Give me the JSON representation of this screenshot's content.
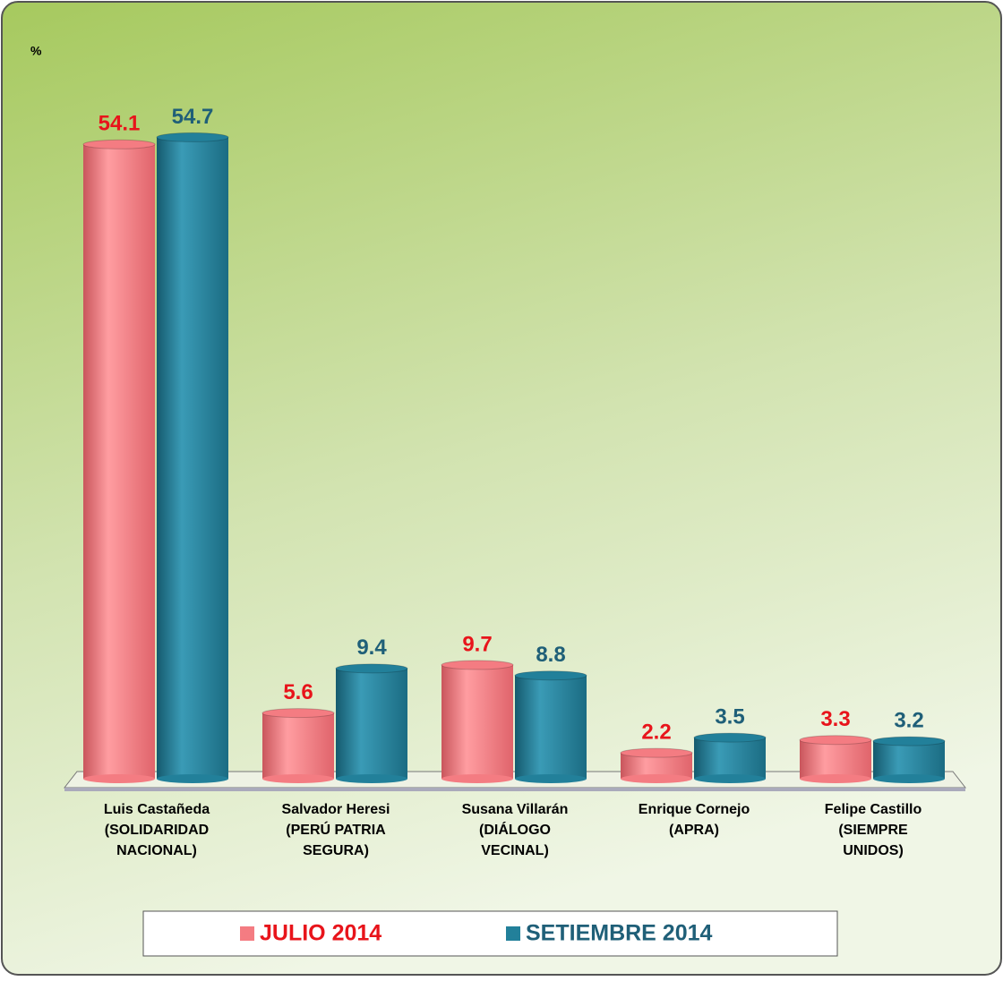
{
  "chart_data": {
    "type": "bar",
    "y_label": "%",
    "categories": [
      [
        "Luis Castañeda",
        "(SOLIDARIDAD",
        "NACIONAL)"
      ],
      [
        "Salvador Heresi",
        "(PERÚ PATRIA",
        "SEGURA)"
      ],
      [
        "Susana Villarán",
        "(DIÁLOGO",
        "VECINAL)"
      ],
      [
        "Enrique Cornejo",
        "(APRA)"
      ],
      [
        "Felipe Castillo",
        "(SIEMPRE",
        "UNIDOS)"
      ]
    ],
    "series": [
      {
        "name": "JULIO 2014",
        "color": "#f47c82",
        "label_color": "#e8141b",
        "values": [
          54.1,
          5.6,
          9.7,
          2.2,
          3.3
        ]
      },
      {
        "name": "SETIEMBRE 2014",
        "color": "#22809a",
        "label_color": "#1f5f78",
        "values": [
          54.7,
          9.4,
          8.8,
          3.5,
          3.2
        ]
      }
    ],
    "ylim": [
      0,
      60
    ],
    "legend": "bottom"
  }
}
